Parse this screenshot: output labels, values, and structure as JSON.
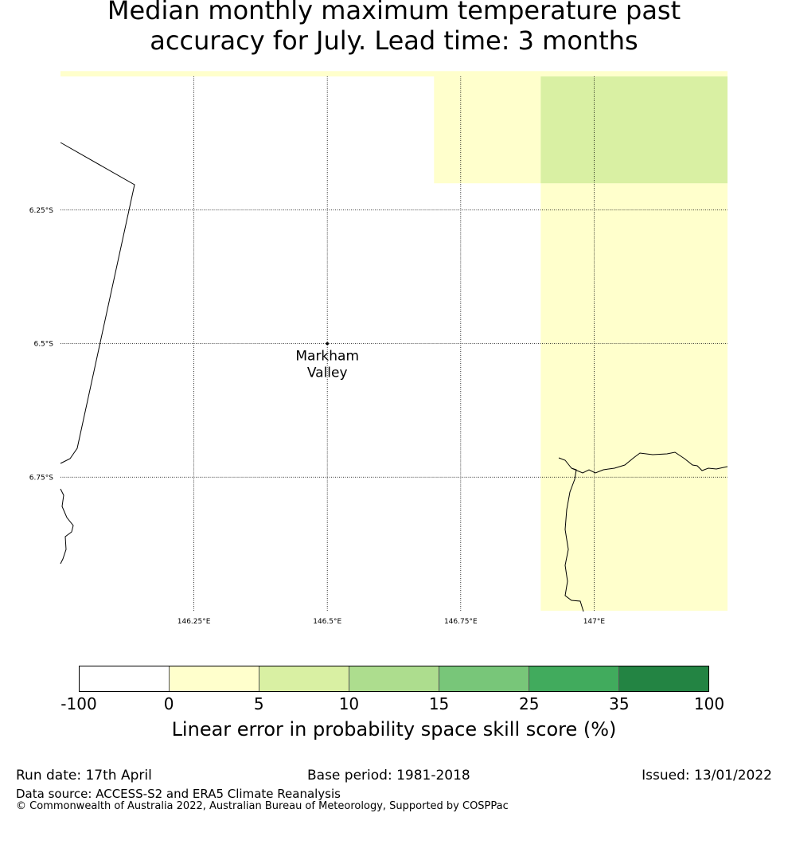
{
  "title": {
    "line1": "Median monthly maximum temperature past",
    "line2": "accuracy for July. Lead time: 3 months"
  },
  "map": {
    "lon_range": [
      146.0,
      147.25
    ],
    "lat_range": [
      -7.0,
      -6.0
    ],
    "lon_ticks": [
      {
        "value": 146.25,
        "label": "146.25°E"
      },
      {
        "value": 146.5,
        "label": "146.5°E"
      },
      {
        "value": 146.75,
        "label": "146.75°E"
      },
      {
        "value": 147.0,
        "label": "147°E"
      }
    ],
    "lat_ticks": [
      {
        "value": -6.25,
        "label": "6.25°S"
      },
      {
        "value": -6.5,
        "label": "6.5°S"
      },
      {
        "value": -6.75,
        "label": "6.75°S"
      }
    ],
    "skill_cells": [
      {
        "lon": [
          146.0,
          147.25
        ],
        "lat": [
          -6.0,
          -5.99
        ],
        "color": "#ffffcc"
      },
      {
        "lon": [
          146.7,
          147.25
        ],
        "lat": [
          -6.2,
          -6.0
        ],
        "color": "#ffffcc"
      },
      {
        "lon": [
          146.9,
          147.25
        ],
        "lat": [
          -7.0,
          -6.2
        ],
        "color": "#ffffcc"
      },
      {
        "lon": [
          146.9,
          147.25
        ],
        "lat": [
          -6.2,
          -6.0
        ],
        "color": "#d9f0a3"
      }
    ],
    "location": {
      "name_line1": "Markham",
      "name_line2": "Valley",
      "lon": 146.5,
      "lat": -6.5
    }
  },
  "colorbar": {
    "colors": [
      "#ffffff",
      "#ffffcc",
      "#d9f0a3",
      "#addd8e",
      "#78c679",
      "#41ab5d",
      "#238443"
    ],
    "ticks": [
      "-100",
      "0",
      "5",
      "10",
      "15",
      "25",
      "35",
      "100"
    ],
    "label": "Linear error in probability space skill score (%)"
  },
  "footer": {
    "run_date": "Run date: 17th April",
    "base_period": "Base period: 1981-2018",
    "issued": "Issued: 13/01/2022",
    "data_source": "Data source: ACCESS-S2 and ERA5 Climate Reanalysis",
    "copyright": "© Commonwealth of Australia 2022, Australian Bureau of Meteorology, Supported by COSPPac"
  }
}
